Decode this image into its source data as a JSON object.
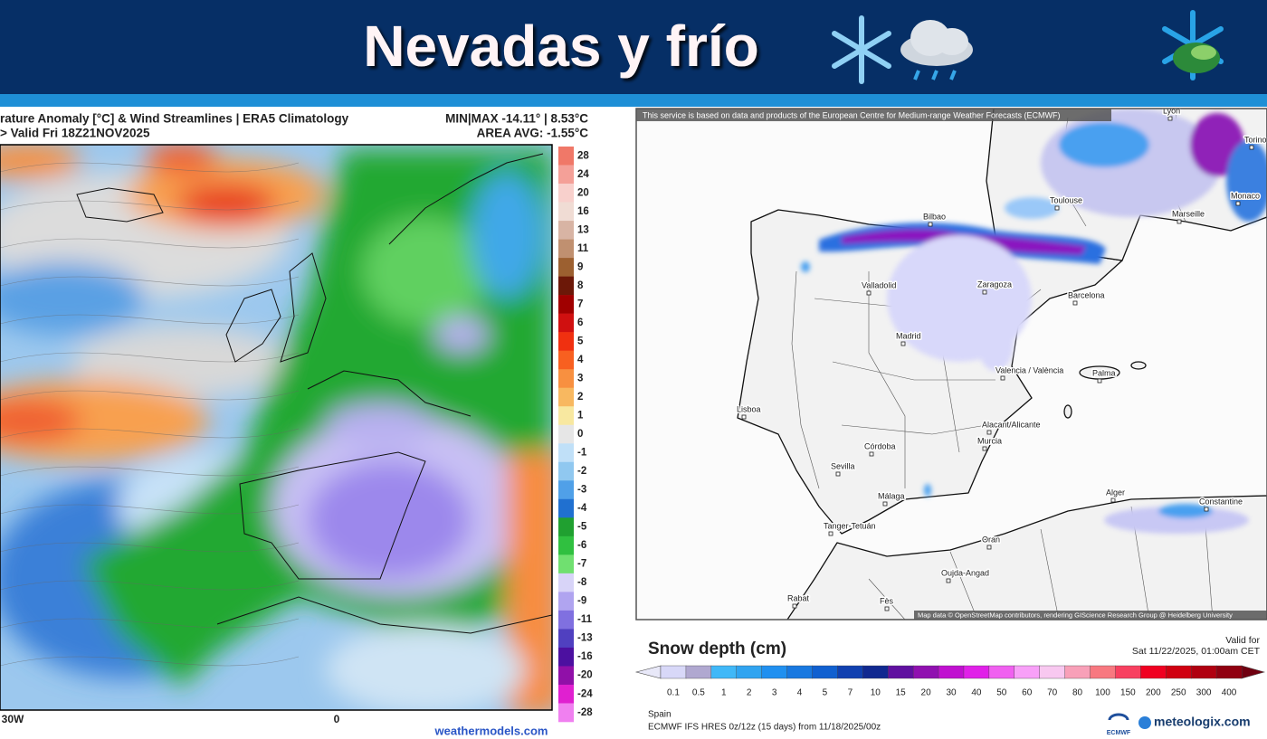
{
  "header": {
    "title": "Nevadas y frío"
  },
  "left_map": {
    "title": "rature Anomaly [°C] & Wind Streamlines | ERA5 Climatology",
    "valid": "> Valid Fri 18Z21NOV2025",
    "minmax": "MIN|MAX -14.11° | 8.53°C",
    "area_avg": "AREA AVG: -1.55°C",
    "x_labels": [
      "30W",
      "0"
    ],
    "credit": "weathermodels.com",
    "colorbar": [
      {
        "value": 28,
        "color": "#f07868"
      },
      {
        "value": 24,
        "color": "#f4a098"
      },
      {
        "value": 20,
        "color": "#f8d0cc"
      },
      {
        "value": 16,
        "color": "#f0dcd4"
      },
      {
        "value": 13,
        "color": "#d8b4a4"
      },
      {
        "value": 11,
        "color": "#c09070"
      },
      {
        "value": 9,
        "color": "#9c6030"
      },
      {
        "value": 8,
        "color": "#6c1808"
      },
      {
        "value": 7,
        "color": "#a00000"
      },
      {
        "value": 6,
        "color": "#d01010"
      },
      {
        "value": 5,
        "color": "#f03010"
      },
      {
        "value": 4,
        "color": "#f86020"
      },
      {
        "value": 3,
        "color": "#f89040"
      },
      {
        "value": 2,
        "color": "#f8b860"
      },
      {
        "value": 1,
        "color": "#f8e8a0"
      },
      {
        "value": 0,
        "color": "#e6e6e6"
      },
      {
        "value": -1,
        "color": "#c0e0f8"
      },
      {
        "value": -2,
        "color": "#90c8f0"
      },
      {
        "value": -3,
        "color": "#50a0e8"
      },
      {
        "value": -4,
        "color": "#2070d0"
      },
      {
        "value": -5,
        "color": "#20a030"
      },
      {
        "value": -6,
        "color": "#30c040"
      },
      {
        "value": -7,
        "color": "#70e070"
      },
      {
        "value": -8,
        "color": "#d8d4f8"
      },
      {
        "value": -9,
        "color": "#b0a4f0"
      },
      {
        "value": -11,
        "color": "#8070e0"
      },
      {
        "value": -13,
        "color": "#5040c0"
      },
      {
        "value": -16,
        "color": "#4c10a0"
      },
      {
        "value": -20,
        "color": "#9010a8"
      },
      {
        "value": -24,
        "color": "#e020d0"
      },
      {
        "value": -28,
        "color": "#f080f0"
      }
    ]
  },
  "right_map": {
    "notice": "This service is based on data and products of the European Centre for Medium-range Weather Forecasts (ECMWF)",
    "cities": [
      "Lyon",
      "Torino",
      "Monaco",
      "Marseille",
      "Toulouse",
      "Bilbao",
      "Valladolid",
      "Zaragoza",
      "Barcelona",
      "Madrid",
      "Valencia / València",
      "Palma",
      "Lisboa",
      "Alacant/Alicante",
      "Murcia",
      "Córdoba",
      "Sevilla",
      "Málaga",
      "Alger",
      "Constantine",
      "Tanger-Tetuán",
      "Oran",
      "Oujda-Angad",
      "Rabat",
      "Fès"
    ],
    "attribution": "Map data © OpenStreetMap contributors, rendering GIScience Research Group @ Heidelberg University",
    "legend_title": "Snow depth (cm)",
    "valid_label": "Valid for",
    "valid_time": "Sat 11/22/2025, 01:00am CET",
    "legend": [
      {
        "value": 0.1,
        "color": "#d8d8f8"
      },
      {
        "value": 0.5,
        "color": "#b0a8d0"
      },
      {
        "value": 1,
        "color": "#40b8f8"
      },
      {
        "value": 2,
        "color": "#30a4f0"
      },
      {
        "value": 3,
        "color": "#2090f0"
      },
      {
        "value": 4,
        "color": "#1878e0"
      },
      {
        "value": 5,
        "color": "#1060d0"
      },
      {
        "value": 7,
        "color": "#1040b0"
      },
      {
        "value": 10,
        "color": "#102890"
      },
      {
        "value": 15,
        "color": "#6010a0"
      },
      {
        "value": 20,
        "color": "#9010b0"
      },
      {
        "value": 30,
        "color": "#c010d0"
      },
      {
        "value": 40,
        "color": "#e020e8"
      },
      {
        "value": 50,
        "color": "#f060f0"
      },
      {
        "value": 60,
        "color": "#f8a0f8"
      },
      {
        "value": 70,
        "color": "#f8c8f0"
      },
      {
        "value": 80,
        "color": "#f8a0b8"
      },
      {
        "value": 100,
        "color": "#f87880"
      },
      {
        "value": 150,
        "color": "#f84060"
      },
      {
        "value": 200,
        "color": "#f00020"
      },
      {
        "value": 250,
        "color": "#d00010"
      },
      {
        "value": 300,
        "color": "#b00010"
      },
      {
        "value": 400,
        "color": "#900010"
      }
    ],
    "region": "Spain",
    "model": "ECMWF IFS HRES 0z/12z (15 days) from 11/18/2025/00z",
    "logo_ecmwf": "ECMWF",
    "logo_site": "meteologix.com"
  }
}
